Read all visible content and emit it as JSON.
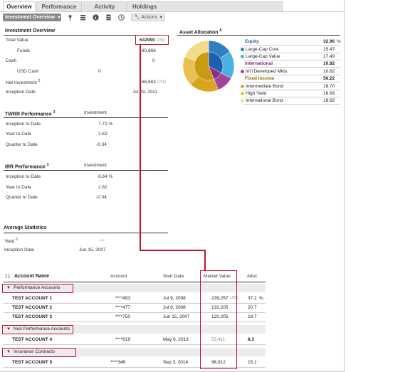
{
  "tabs": [
    "Overview",
    "Performance",
    "Activity",
    "Holdings"
  ],
  "toolbar": {
    "dropdown_label": "Investment Overview",
    "actions_label": "Actions"
  },
  "investment_overview": {
    "title": "Investment Overview",
    "total_value_label": "Total Value",
    "total_value": "642990",
    "total_value_currency": "USD",
    "funds_label": "Funds",
    "funds_value": "80,866",
    "cash_label": "Cash",
    "cash_value": "0",
    "usd_cash_label": "USD Cash",
    "usd_cash_value": "0",
    "net_investment_label": "Net Investment",
    "net_investment_sup": "2",
    "net_investment_value": "66,883",
    "net_investment_currency": "USD",
    "inception_label": "Inception Date",
    "inception_value": "Jul 29, 2011"
  },
  "twrr": {
    "title": "TWRR Performance",
    "sup": "3",
    "col": "Investment",
    "rows": [
      {
        "label": "Inception to Date",
        "value": "7.72",
        "unit": "%"
      },
      {
        "label": "Year to Date",
        "value": "1.62",
        "unit": ""
      },
      {
        "label": "Quarter to Date",
        "value": "-0.34",
        "unit": ""
      }
    ]
  },
  "irr": {
    "title": "IRR Performance",
    "sup": "3",
    "col": "Investment",
    "rows": [
      {
        "label": "Inception to Date",
        "value": "6.64",
        "unit": "%"
      },
      {
        "label": "Year to Date",
        "value": "1.62",
        "unit": ""
      },
      {
        "label": "Quarter to Date",
        "value": "-0.34",
        "unit": ""
      }
    ]
  },
  "average": {
    "title": "Average Statistics",
    "yield_label": "Yield",
    "yield_sup": "5",
    "yield_value": "—",
    "inception_label": "Inception Date",
    "inception_value": "Jun 15, 2007"
  },
  "asset_allocation": {
    "title": "Asset Allocation",
    "sup": "8",
    "unit": "%",
    "groups": [
      {
        "name": "Equity",
        "total": "32.96",
        "color": "#1f5ea8",
        "name_color": "#1f5ea8",
        "items": [
          {
            "name": "Large-Cap Core",
            "value": "15.47",
            "color": "#2e7fc4"
          },
          {
            "name": "Large-Cap Value",
            "value": "17.49",
            "color": "#4bb0de"
          }
        ]
      },
      {
        "name": "International",
        "total": "10.82",
        "color": "#8b2d8b",
        "name_color": "#7a1f7a",
        "items": [
          {
            "name": "Int'l Developed Mkts",
            "value": "10.82",
            "color": "#a0449e"
          }
        ]
      },
      {
        "name": "Fixed Income",
        "total": "56.22",
        "color": "#c99a12",
        "name_color": "#8a6a00",
        "items": [
          {
            "name": "Intermediate Bond",
            "value": "18.70",
            "color": "#d9a520"
          },
          {
            "name": "High Yield",
            "value": "18.69",
            "color": "#e8c050"
          },
          {
            "name": "International Bond",
            "value": "18.82",
            "color": "#f2dc8a"
          }
        ]
      }
    ]
  },
  "accounts": {
    "col_name": "Account Name",
    "col_account": "Account",
    "col_start": "Start Date",
    "col_market": "Market Value",
    "col_alloc": "Alloc.",
    "groups": [
      {
        "label": "Performance Accounts",
        "rows": [
          {
            "name": "TEST ACCOUNT 1",
            "account": "****493",
            "start": "Jul 9, 2008",
            "market": "239,257",
            "market_currency": "USD",
            "alloc": "37.2",
            "alloc_unit": "%"
          },
          {
            "name": "TEST ACCOUNT 2",
            "account": "****477",
            "start": "Jul 9, 2008",
            "market": "133,205",
            "market_currency": "",
            "alloc": "20.7",
            "alloc_unit": ""
          },
          {
            "name": "TEST ACCOUNT 3",
            "account": "****750",
            "start": "Jun 15, 2007",
            "market": "120,205",
            "market_currency": "",
            "alloc": "18.7",
            "alloc_unit": ""
          }
        ]
      },
      {
        "label": "Non Performance Accounts",
        "rows": [
          {
            "name": "TEST ACCOUNT 4",
            "account": "****619",
            "start": "May 8, 2013",
            "market": "53,411",
            "market_currency": "",
            "alloc": "8.3",
            "alloc_unit": ""
          }
        ]
      },
      {
        "label": "Insurance Contracts",
        "rows": [
          {
            "name": "TEST ACCOUNT 5",
            "account": "****346",
            "start": "Sep 3, 2014",
            "market": "96,912",
            "market_currency": "",
            "alloc": "15.1",
            "alloc_unit": ""
          }
        ]
      }
    ]
  }
}
